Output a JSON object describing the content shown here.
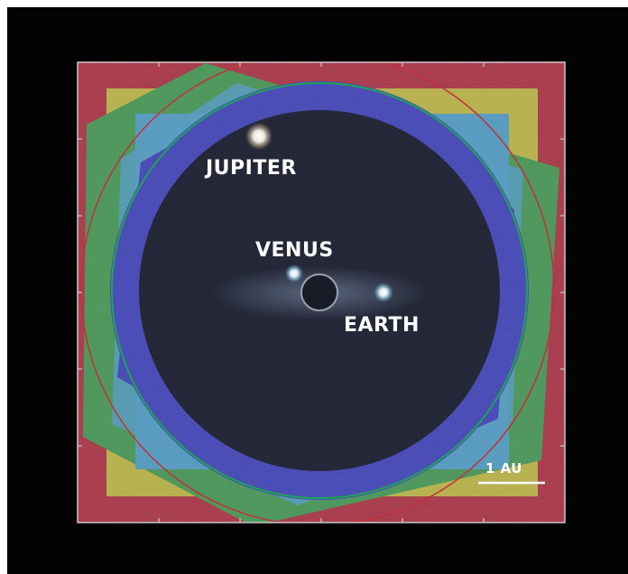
{
  "image": {
    "labels": {
      "jupiter": "JUPITER",
      "venus": "VENUS",
      "earth": "EARTH"
    },
    "scale_bar": {
      "text": "1 AU"
    },
    "colors": {
      "background": "#030303",
      "page": "#ffffff",
      "outer_band": "#a8323c",
      "yellow_band": "#b9b83e",
      "green_band": "#3f9a4c",
      "cyan_band": "#4b9fbf",
      "dark_blue_ring": "#3a43b4",
      "green_circle": "#1fa35a",
      "red_circle": "#c2303a",
      "coronagraph_mask": "#191c26",
      "mask_edge": "#9aa3b5",
      "label_text": "#ffffff"
    }
  }
}
